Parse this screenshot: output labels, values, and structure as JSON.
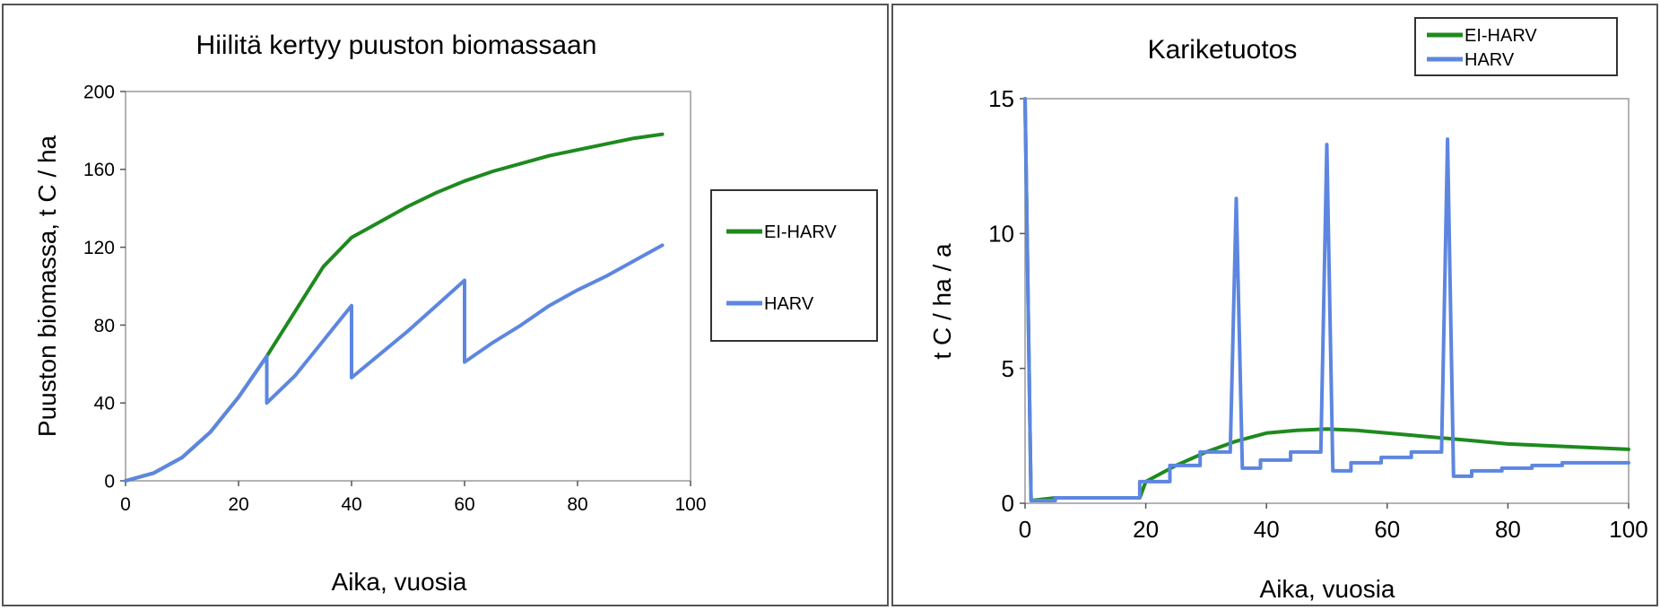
{
  "chart_data": [
    {
      "type": "line",
      "title": "Hiilitä kertyy puuston biomassaan",
      "xlabel": "Aika, vuosia",
      "ylabel": "Puuston biomassa, t C / ha",
      "xlim": [
        0,
        100
      ],
      "ylim": [
        0,
        200
      ],
      "xticks": [
        "0",
        "20",
        "40",
        "60",
        "80",
        "100"
      ],
      "yticks": [
        "0",
        "40",
        "80",
        "120",
        "160",
        "200"
      ],
      "grid": false,
      "legend_placement": "right",
      "series": [
        {
          "name": "EI-HARV",
          "color": "#1e8a1e",
          "points": [
            [
              0,
              0
            ],
            [
              5,
              4
            ],
            [
              10,
              12
            ],
            [
              15,
              25
            ],
            [
              20,
              43
            ],
            [
              25,
              64
            ],
            [
              30,
              87
            ],
            [
              35,
              110
            ],
            [
              40,
              125
            ],
            [
              45,
              133
            ],
            [
              50,
              141
            ],
            [
              55,
              148
            ],
            [
              60,
              154
            ],
            [
              65,
              159
            ],
            [
              70,
              163
            ],
            [
              75,
              167
            ],
            [
              80,
              170
            ],
            [
              85,
              173
            ],
            [
              90,
              176
            ],
            [
              95,
              178
            ]
          ]
        },
        {
          "name": "HARV",
          "color": "#5d86e0",
          "points": [
            [
              0,
              0
            ],
            [
              5,
              4
            ],
            [
              10,
              12
            ],
            [
              15,
              25
            ],
            [
              20,
              43
            ],
            [
              25,
              64
            ],
            [
              25,
              40
            ],
            [
              30,
              54
            ],
            [
              35,
              72
            ],
            [
              40,
              90
            ],
            [
              40,
              53
            ],
            [
              45,
              65
            ],
            [
              50,
              77
            ],
            [
              55,
              90
            ],
            [
              60,
              103
            ],
            [
              60,
              61
            ],
            [
              65,
              71
            ],
            [
              70,
              80
            ],
            [
              75,
              90
            ],
            [
              80,
              98
            ],
            [
              85,
              105
            ],
            [
              90,
              113
            ],
            [
              95,
              121
            ]
          ]
        }
      ]
    },
    {
      "type": "line",
      "title": "Kariketuotos",
      "xlabel": "Aika, vuosia",
      "ylabel": "t C / ha / a",
      "xlim": [
        0,
        100
      ],
      "ylim": [
        0,
        15
      ],
      "xticks": [
        "0",
        "20",
        "40",
        "60",
        "80",
        "100"
      ],
      "yticks": [
        "0",
        "5",
        "10",
        "15"
      ],
      "grid": false,
      "legend_placement": "top-right",
      "series": [
        {
          "name": "EI-HARV",
          "color": "#1e8a1e",
          "points": [
            [
              0,
              15
            ],
            [
              1,
              0.1
            ],
            [
              5,
              0.2
            ],
            [
              19,
              0.2
            ],
            [
              20,
              0.8
            ],
            [
              25,
              1.4
            ],
            [
              30,
              1.9
            ],
            [
              35,
              2.3
            ],
            [
              40,
              2.6
            ],
            [
              45,
              2.7
            ],
            [
              50,
              2.75
            ],
            [
              55,
              2.7
            ],
            [
              60,
              2.6
            ],
            [
              65,
              2.5
            ],
            [
              70,
              2.4
            ],
            [
              75,
              2.3
            ],
            [
              80,
              2.2
            ],
            [
              85,
              2.15
            ],
            [
              90,
              2.1
            ],
            [
              95,
              2.05
            ],
            [
              100,
              2.0
            ]
          ]
        },
        {
          "name": "HARV",
          "color": "#5d86e0",
          "points": [
            [
              0,
              15
            ],
            [
              1,
              0.1
            ],
            [
              5,
              0.1
            ],
            [
              5,
              0.2
            ],
            [
              19,
              0.2
            ],
            [
              19,
              0.8
            ],
            [
              24,
              0.8
            ],
            [
              24,
              1.4
            ],
            [
              29,
              1.4
            ],
            [
              29,
              1.9
            ],
            [
              34,
              1.9
            ],
            [
              35,
              11.3
            ],
            [
              36,
              1.3
            ],
            [
              39,
              1.3
            ],
            [
              39,
              1.6
            ],
            [
              44,
              1.6
            ],
            [
              44,
              1.9
            ],
            [
              49,
              1.9
            ],
            [
              50,
              13.3
            ],
            [
              51,
              1.2
            ],
            [
              54,
              1.2
            ],
            [
              54,
              1.5
            ],
            [
              59,
              1.5
            ],
            [
              59,
              1.7
            ],
            [
              64,
              1.7
            ],
            [
              64,
              1.9
            ],
            [
              69,
              1.9
            ],
            [
              70,
              13.5
            ],
            [
              71,
              1.0
            ],
            [
              74,
              1.0
            ],
            [
              74,
              1.2
            ],
            [
              79,
              1.2
            ],
            [
              79,
              1.3
            ],
            [
              84,
              1.3
            ],
            [
              84,
              1.4
            ],
            [
              89,
              1.4
            ],
            [
              89,
              1.5
            ],
            [
              100,
              1.5
            ]
          ]
        }
      ]
    }
  ]
}
